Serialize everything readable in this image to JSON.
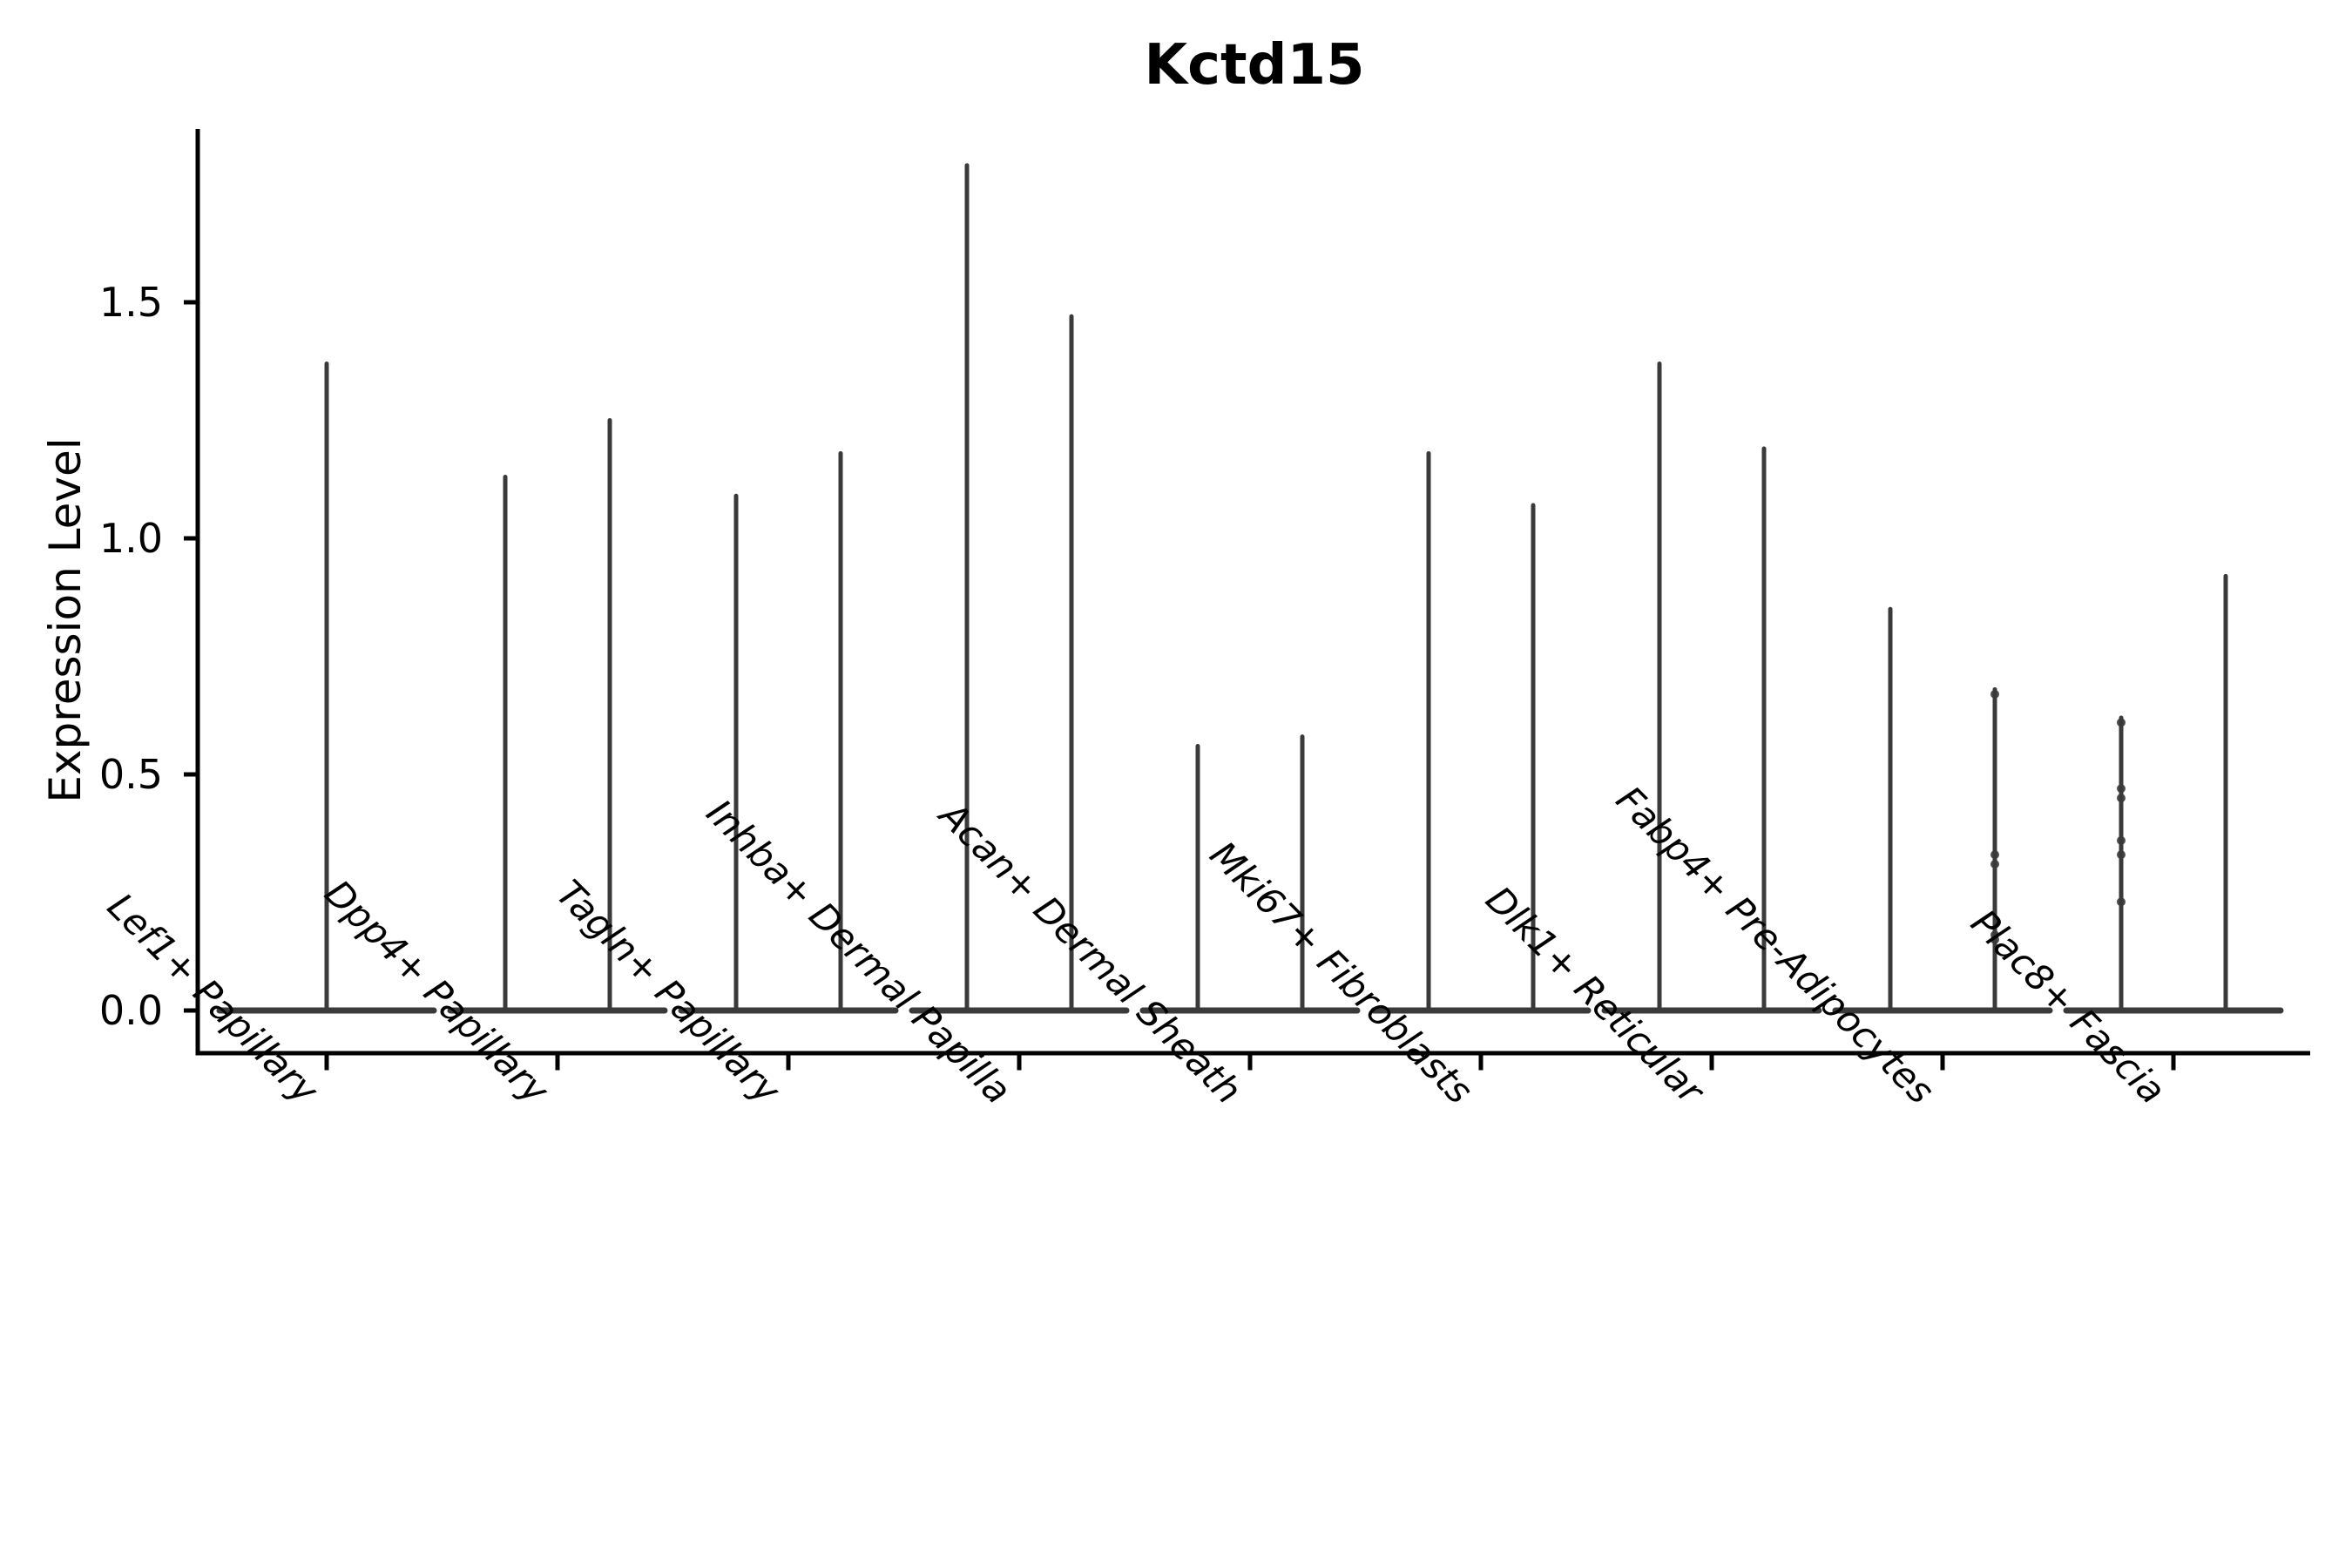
{
  "figure": {
    "title": "Kctd15",
    "ylabel": "Expression Level"
  },
  "chart_data": {
    "type": "violin",
    "title": "Kctd15",
    "xlabel": "",
    "ylabel": "Expression Level",
    "ylim": [
      -0.09,
      1.87
    ],
    "grid": false,
    "legend": "none",
    "ytick_labels": [
      "0.0",
      "0.5",
      "1.0",
      "1.5"
    ],
    "ytick_values": [
      0.0,
      0.5,
      1.0,
      1.5
    ],
    "categories": [
      "Lef1+ Papillary",
      "Dpp4+ Papillary",
      "Tagln+ Papillary",
      "Inhba+ Dermal Papilla",
      "Acan+ Dermal Sheath",
      "Mki67+ Fibroblasts",
      "Dlk1+ Reticular",
      "Fabp4+ Pre-Adipocytes",
      "Plac8+ Fascia"
    ],
    "groups": [
      {
        "category": "Lef1+ Papillary",
        "violins": [
          {
            "pos": "center",
            "max": 1.37,
            "dots": []
          }
        ]
      },
      {
        "category": "Dpp4+ Papillary",
        "violins": [
          {
            "pos": "left",
            "max": 1.13,
            "dots": []
          },
          {
            "pos": "right",
            "max": 1.25,
            "dots": []
          }
        ]
      },
      {
        "category": "Tagln+ Papillary",
        "violins": [
          {
            "pos": "left",
            "max": 1.09,
            "dots": []
          },
          {
            "pos": "right",
            "max": 1.18,
            "dots": []
          }
        ]
      },
      {
        "category": "Inhba+ Dermal Papilla",
        "violins": [
          {
            "pos": "left",
            "max": 1.79,
            "dots": []
          },
          {
            "pos": "right",
            "max": 1.47,
            "dots": []
          }
        ]
      },
      {
        "category": "Acan+ Dermal Sheath",
        "violins": [
          {
            "pos": "left",
            "max": 0.56,
            "dots": []
          },
          {
            "pos": "right",
            "max": 0.58,
            "dots": []
          }
        ]
      },
      {
        "category": "Mki67+ Fibroblasts",
        "violins": [
          {
            "pos": "left",
            "max": 1.18,
            "dots": []
          },
          {
            "pos": "right",
            "max": 1.07,
            "dots": []
          }
        ]
      },
      {
        "category": "Dlk1+ Reticular",
        "violins": [
          {
            "pos": "left",
            "max": 1.37,
            "dots": []
          },
          {
            "pos": "right",
            "max": 1.19,
            "dots": []
          }
        ]
      },
      {
        "category": "Fabp4+ Pre-Adipocytes",
        "violins": [
          {
            "pos": "left",
            "max": 0.85,
            "dots": []
          },
          {
            "pos": "right",
            "max": 0.68,
            "dots": [
              0.67,
              0.33,
              0.31,
              0.16,
              0.15
            ]
          }
        ]
      },
      {
        "category": "Plac8+ Fascia",
        "violins": [
          {
            "pos": "left",
            "max": 0.62,
            "dots": [
              0.61,
              0.47,
              0.45,
              0.36,
              0.33,
              0.23
            ]
          },
          {
            "pos": "right",
            "max": 0.92,
            "dots": []
          }
        ]
      }
    ],
    "colors": {
      "violin": "#3a3a3a",
      "axis": "#000000",
      "text": "#000000",
      "background": "#ffffff"
    }
  }
}
